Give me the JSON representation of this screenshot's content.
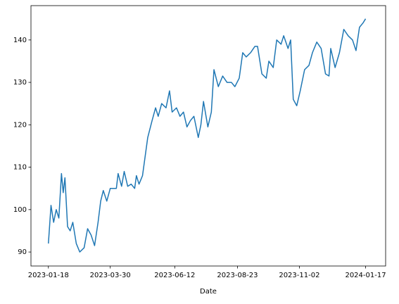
{
  "chart_data": {
    "type": "line",
    "xlabel": "Date",
    "x": [
      "2023-01-18",
      "2023-01-21",
      "2023-01-24",
      "2023-01-27",
      "2023-01-30",
      "2023-02-02",
      "2023-02-04",
      "2023-02-06",
      "2023-02-09",
      "2023-02-12",
      "2023-02-15",
      "2023-02-19",
      "2023-02-23",
      "2023-02-28",
      "2023-03-04",
      "2023-03-08",
      "2023-03-12",
      "2023-03-16",
      "2023-03-19",
      "2023-03-22",
      "2023-03-26",
      "2023-03-30",
      "2023-04-06",
      "2023-04-08",
      "2023-04-12",
      "2023-04-15",
      "2023-04-19",
      "2023-04-23",
      "2023-04-27",
      "2023-04-29",
      "2023-05-02",
      "2023-05-06",
      "2023-05-12",
      "2023-05-17",
      "2023-05-21",
      "2023-05-24",
      "2023-05-28",
      "2023-06-02",
      "2023-06-06",
      "2023-06-09",
      "2023-06-14",
      "2023-06-18",
      "2023-06-22",
      "2023-06-26",
      "2023-06-30",
      "2023-07-04",
      "2023-07-09",
      "2023-07-12",
      "2023-07-15",
      "2023-07-20",
      "2023-07-24",
      "2023-07-27",
      "2023-08-01",
      "2023-08-06",
      "2023-08-11",
      "2023-08-16",
      "2023-08-20",
      "2023-08-25",
      "2023-08-29",
      "2023-09-02",
      "2023-09-07",
      "2023-09-12",
      "2023-09-15",
      "2023-09-20",
      "2023-09-25",
      "2023-09-28",
      "2023-10-03",
      "2023-10-07",
      "2023-10-12",
      "2023-10-15",
      "2023-10-20",
      "2023-10-23",
      "2023-10-26",
      "2023-10-30",
      "2023-11-03",
      "2023-11-08",
      "2023-11-13",
      "2023-11-17",
      "2023-11-22",
      "2023-11-27",
      "2023-12-02",
      "2023-12-06",
      "2023-12-08",
      "2023-12-13",
      "2023-12-18",
      "2023-12-23",
      "2023-12-28",
      "2024-01-02",
      "2024-01-06",
      "2024-01-10",
      "2024-01-14",
      "2024-01-17"
    ],
    "values": [
      92,
      101,
      97,
      100,
      98,
      108.5,
      104,
      107.5,
      96,
      95,
      97,
      92,
      90,
      91,
      95.5,
      94,
      91.5,
      97,
      102,
      104.5,
      102,
      105,
      105,
      108.5,
      105.5,
      109,
      105.5,
      106,
      105,
      108,
      106,
      108,
      117,
      121,
      124,
      122,
      125,
      124,
      128,
      123,
      124,
      122,
      123,
      119.5,
      121,
      122,
      117,
      120,
      125.5,
      119.5,
      123,
      133,
      129,
      131.5,
      130,
      130,
      129,
      131,
      137,
      136,
      137,
      138.5,
      138.5,
      132,
      131,
      135,
      133.5,
      140,
      139,
      141,
      138,
      140,
      126,
      124.5,
      128,
      133,
      134,
      137,
      139.5,
      138,
      132,
      131.5,
      138,
      133.5,
      137,
      142.5,
      141,
      140,
      137.5,
      143,
      144,
      145
    ],
    "color": "#1f77b4",
    "xlim": [
      "2022-12-29",
      "2024-02-09"
    ],
    "xticks": [
      "2023-01-18",
      "2023-03-30",
      "2023-06-12",
      "2023-08-23",
      "2023-11-02",
      "2024-01-17"
    ],
    "ylim": [
      86.7,
      148.1
    ],
    "yticks": [
      90,
      100,
      110,
      120,
      130,
      140
    ]
  }
}
